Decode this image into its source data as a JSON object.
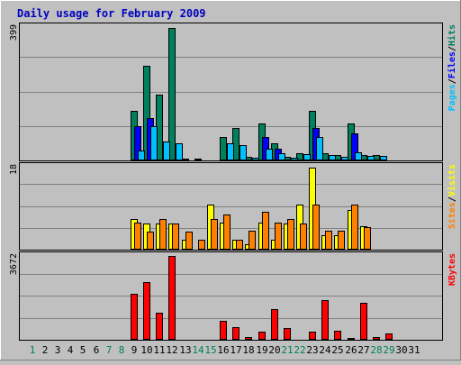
{
  "colors": {
    "background": "#C0C0C0",
    "plot_background": "#C0C0C0",
    "grid": "#808080",
    "title": "#0000C0",
    "hits": "#00805C",
    "files": "#0000FF",
    "pages": "#00C0FF",
    "visits": "#FFFF00",
    "sites": "#FF8000",
    "kbytes": "#FF0000",
    "weekend_label": "#00805C",
    "weekday_label": "#000000"
  },
  "chart_data": {
    "type": "bar",
    "title": "Daily usage for February 2009",
    "categories": [
      "1",
      "2",
      "3",
      "4",
      "5",
      "6",
      "7",
      "8",
      "9",
      "10",
      "11",
      "12",
      "13",
      "14",
      "15",
      "16",
      "17",
      "18",
      "19",
      "20",
      "21",
      "22",
      "23",
      "24",
      "25",
      "26",
      "27",
      "28",
      "29",
      "30",
      "31"
    ],
    "weekend_days": [
      "1",
      "7",
      "8",
      "14",
      "15",
      "21",
      "22",
      "28",
      "29"
    ],
    "grid": true,
    "legend_placement": "right",
    "panels": [
      {
        "ymax_label": "399",
        "ymax": 399,
        "legend": [
          {
            "text": "Pages",
            "color_key": "pages"
          },
          {
            "text": "/",
            "color_key": "weekday_label"
          },
          {
            "text": "Files",
            "color_key": "files"
          },
          {
            "text": "/",
            "color_key": "weekday_label"
          },
          {
            "text": "Hits",
            "color_key": "hits"
          }
        ],
        "series": [
          {
            "name": "Hits",
            "color_key": "hits",
            "offset": 0,
            "values": [
              0,
              0,
              0,
              0,
              0,
              0,
              0,
              0,
              145,
              280,
              195,
              390,
              5,
              5,
              0,
              70,
              95,
              10,
              110,
              50,
              10,
              20,
              145,
              20,
              15,
              110,
              15,
              15,
              0,
              0,
              0
            ]
          },
          {
            "name": "Files",
            "color_key": "files",
            "offset": 1,
            "values": [
              0,
              0,
              0,
              0,
              0,
              0,
              0,
              0,
              100,
              125,
              0,
              0,
              0,
              0,
              0,
              0,
              0,
              0,
              70,
              35,
              0,
              0,
              95,
              0,
              0,
              80,
              0,
              0,
              0,
              0,
              0
            ]
          },
          {
            "name": "Pages",
            "color_key": "pages",
            "offset": 2,
            "values": [
              0,
              0,
              0,
              0,
              0,
              0,
              0,
              0,
              30,
              100,
              55,
              50,
              3,
              3,
              0,
              50,
              45,
              8,
              35,
              20,
              8,
              18,
              70,
              15,
              10,
              25,
              12,
              13,
              0,
              0,
              0
            ]
          }
        ]
      },
      {
        "ymax_label": "18",
        "ymax": 18,
        "legend": [
          {
            "text": "Sites",
            "color_key": "sites"
          },
          {
            "text": "/",
            "color_key": "weekday_label"
          },
          {
            "text": "Visits",
            "color_key": "visits"
          }
        ],
        "series": [
          {
            "name": "Visits",
            "color_key": "visits",
            "offset": 0,
            "values": [
              0,
              0,
              0,
              0,
              0,
              0,
              0,
              0,
              6.5,
              5.5,
              5.5,
              5.5,
              2.1,
              0,
              9.5,
              5.8,
              2.1,
              1.2,
              5.8,
              2.1,
              5.5,
              9.5,
              17.5,
              3.0,
              3.0,
              8.5,
              5.0,
              0,
              0,
              0,
              0
            ]
          },
          {
            "name": "Sites",
            "color_key": "sites",
            "offset": 1,
            "values": [
              0,
              0,
              0,
              0,
              0,
              0,
              0,
              0,
              5.8,
              3.8,
              6.5,
              5.5,
              3.8,
              2.1,
              6.5,
              7.5,
              2.1,
              4.0,
              8.0,
              5.8,
              6.5,
              5.5,
              9.5,
              4.0,
              4.0,
              9.5,
              4.8,
              0,
              0,
              0,
              0
            ]
          }
        ]
      },
      {
        "ymax_label": "3672",
        "ymax": 3672,
        "legend": [
          {
            "text": "KBytes",
            "color_key": "kbytes"
          }
        ],
        "series": [
          {
            "name": "KBytes",
            "color_key": "kbytes",
            "offset": 0,
            "values": [
              0,
              0,
              0,
              0,
              0,
              0,
              0,
              0,
              1970,
              2470,
              1150,
              3580,
              30,
              30,
              0,
              810,
              560,
              130,
              330,
              1310,
              490,
              30,
              340,
              1720,
              390,
              80,
              1590,
              110,
              260,
              0,
              0
            ]
          }
        ]
      }
    ]
  }
}
